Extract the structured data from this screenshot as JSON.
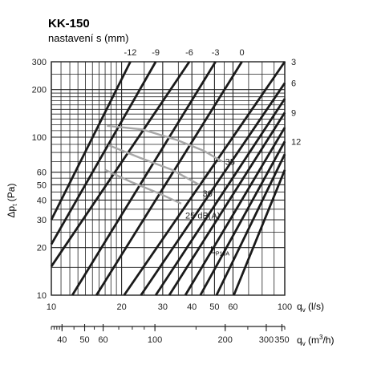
{
  "chart_data": {
    "type": "line",
    "title": "KK-150",
    "subtitle": "nastavení s (mm)",
    "ylabel": "Δp_t (Pa)",
    "xlabel": "q_v (l/s)",
    "xlabel2": "q_v (m³/h)",
    "x_scale": "log",
    "y_scale": "log",
    "xlim": [
      10,
      100
    ],
    "ylim": [
      10,
      300
    ],
    "x_ticks": [
      {
        "value": 10,
        "label": "10"
      },
      {
        "value": 20,
        "label": "20"
      },
      {
        "value": 30,
        "label": "30"
      },
      {
        "value": 40,
        "label": "40"
      },
      {
        "value": 50,
        "label": "50"
      },
      {
        "value": 60,
        "label": "60"
      },
      {
        "value": 100,
        "label": "100"
      }
    ],
    "x2_ticks": [
      {
        "value": 40,
        "label": "40"
      },
      {
        "value": 50,
        "label": "50"
      },
      {
        "value": 60,
        "label": "60"
      },
      {
        "value": 100,
        "label": "100"
      },
      {
        "value": 200,
        "label": "200"
      },
      {
        "value": 300,
        "label": "300"
      },
      {
        "value": 350,
        "label": "350"
      }
    ],
    "y_ticks": [
      {
        "value": 10,
        "label": "10"
      },
      {
        "value": 20,
        "label": "20"
      },
      {
        "value": 30,
        "label": "30"
      },
      {
        "value": 40,
        "label": "40"
      },
      {
        "value": 50,
        "label": "50"
      },
      {
        "value": 60,
        "label": "60"
      },
      {
        "value": 100,
        "label": "100"
      },
      {
        "value": 200,
        "label": "200"
      },
      {
        "value": 300,
        "label": "300"
      }
    ],
    "grid": true,
    "settings": [
      {
        "label": "-12",
        "x_top": 21.8,
        "points": [
          [
            10,
            30
          ],
          [
            21.8,
            300
          ]
        ]
      },
      {
        "label": "-9",
        "x_top": 28.0,
        "points": [
          [
            10,
            21
          ],
          [
            28.0,
            300
          ]
        ]
      },
      {
        "label": "-6",
        "x_top": 39.0,
        "points": [
          [
            10,
            15.2
          ],
          [
            39.0,
            300
          ]
        ]
      },
      {
        "label": "-3",
        "x_top": 50.5,
        "points": [
          [
            12.3,
            10
          ],
          [
            50.5,
            300
          ]
        ]
      },
      {
        "label": "0",
        "x_top": 65.5,
        "points": [
          [
            15.6,
            10
          ],
          [
            65.5,
            300
          ]
        ]
      },
      {
        "label": "3",
        "y_right": 300,
        "points": [
          [
            20.5,
            10
          ],
          [
            100,
            300
          ]
        ]
      },
      {
        "label": "6",
        "y_right": 220,
        "points": [
          [
            24.2,
            10
          ],
          [
            100,
            220
          ]
        ]
      },
      {
        "label": "",
        "points": [
          [
            28.0,
            10
          ],
          [
            100,
            175
          ]
        ]
      },
      {
        "label": "9",
        "y_right": 143,
        "points": [
          [
            32.0,
            10
          ],
          [
            100,
            143
          ]
        ]
      },
      {
        "label": "",
        "points": [
          [
            37.5,
            10
          ],
          [
            100,
            115
          ]
        ]
      },
      {
        "label": "12",
        "y_right": 94,
        "points": [
          [
            43.5,
            10
          ],
          [
            100,
            94
          ]
        ]
      },
      {
        "label": "",
        "points": [
          [
            51.0,
            10
          ],
          [
            100,
            78
          ]
        ]
      },
      {
        "label": "",
        "points": [
          [
            60.5,
            10
          ],
          [
            100,
            62
          ]
        ]
      }
    ],
    "noise_curves": [
      {
        "label": "35",
        "label_at": [
          55.5,
          70
        ],
        "points": [
          [
            17.3,
            118
          ],
          [
            24.5,
            112
          ],
          [
            34.5,
            96
          ],
          [
            45,
            82
          ],
          [
            54,
            70
          ]
        ]
      },
      {
        "label": "30",
        "label_at": [
          44.5,
          44
        ],
        "points": [
          [
            17.6,
            89
          ],
          [
            24,
            74
          ],
          [
            33,
            62
          ],
          [
            43,
            50
          ]
        ]
      },
      {
        "label": "25 dB(A)",
        "label_at": [
          37.5,
          32
        ],
        "points": [
          [
            17,
            62
          ],
          [
            22,
            52
          ],
          [
            29,
            44
          ],
          [
            36,
            38
          ]
        ]
      }
    ],
    "annotation": "L_P10A",
    "annotation_at": [
      48,
      18.5
    ],
    "colors": {
      "line": "#1a1a1a",
      "noise": "#a8a8a8",
      "grid": "#222222",
      "text": "#222222"
    }
  }
}
